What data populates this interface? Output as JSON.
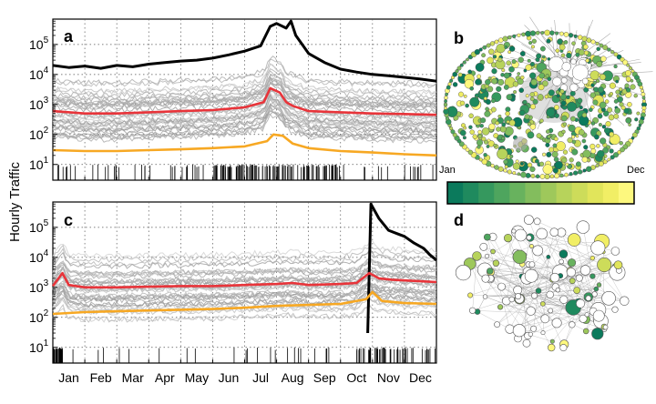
{
  "figure": {
    "ylabel": "Hourly Traffic",
    "months": [
      "Jan",
      "Feb",
      "Mar",
      "Apr",
      "May",
      "Jun",
      "Jul",
      "Aug",
      "Sep",
      "Oct",
      "Nov",
      "Dec"
    ],
    "colorbar": {
      "start_label": "Jan",
      "end_label": "Dec",
      "colors": [
        "#0b7a5c",
        "#1f8a5e",
        "#35985e",
        "#4ea55e",
        "#68b25e",
        "#83bd5d",
        "#9ec85b",
        "#b7d35b",
        "#cddc5a",
        "#e1e55b",
        "#f1ee65",
        "#fdf87e"
      ]
    }
  },
  "chart_data": [
    {
      "panel": "a",
      "type": "line",
      "yscale": "log",
      "ylim": [
        3,
        700000
      ],
      "yticks": [
        "10^1",
        "10^2",
        "10^3",
        "10^4",
        "10^5"
      ],
      "x_categories": [
        "Jan",
        "Feb",
        "Mar",
        "Apr",
        "May",
        "Jun",
        "Jul",
        "Aug",
        "Sep",
        "Oct",
        "Nov",
        "Dec"
      ],
      "x_domain_months": [
        0,
        12
      ],
      "series": [
        {
          "color": "#000000",
          "points": [
            [
              0,
              20000
            ],
            [
              0.5,
              17000
            ],
            [
              1,
              19000
            ],
            [
              1.5,
              16000
            ],
            [
              2,
              20000
            ],
            [
              2.5,
              18000
            ],
            [
              3,
              22000
            ],
            [
              3.5,
              25000
            ],
            [
              4,
              28000
            ],
            [
              4.5,
              30000
            ],
            [
              5,
              35000
            ],
            [
              5.5,
              45000
            ],
            [
              6,
              60000
            ],
            [
              6.5,
              90000
            ],
            [
              6.8,
              400000
            ],
            [
              7,
              500000
            ],
            [
              7.3,
              350000
            ],
            [
              7.45,
              600000
            ],
            [
              7.6,
              200000
            ],
            [
              8,
              50000
            ],
            [
              8.5,
              25000
            ],
            [
              9,
              15000
            ],
            [
              9.5,
              12000
            ],
            [
              10,
              10000
            ],
            [
              10.5,
              9000
            ],
            [
              11,
              8000
            ],
            [
              11.5,
              7000
            ],
            [
              12,
              6000
            ]
          ]
        },
        {
          "color": "#e8343a",
          "points": [
            [
              0,
              600
            ],
            [
              1,
              500
            ],
            [
              2,
              500
            ],
            [
              3,
              550
            ],
            [
              4,
              600
            ],
            [
              5,
              650
            ],
            [
              6,
              800
            ],
            [
              6.6,
              1200
            ],
            [
              6.8,
              3500
            ],
            [
              7.1,
              2500
            ],
            [
              7.3,
              1200
            ],
            [
              7.5,
              900
            ],
            [
              8,
              600
            ],
            [
              9,
              550
            ],
            [
              10,
              500
            ],
            [
              11,
              480
            ],
            [
              12,
              450
            ]
          ]
        },
        {
          "color": "#f7a823",
          "points": [
            [
              0,
              30
            ],
            [
              1,
              28
            ],
            [
              2,
              28
            ],
            [
              3,
              30
            ],
            [
              4,
              32
            ],
            [
              5,
              35
            ],
            [
              6,
              40
            ],
            [
              6.7,
              60
            ],
            [
              6.9,
              100
            ],
            [
              7.2,
              90
            ],
            [
              7.5,
              50
            ],
            [
              8,
              35
            ],
            [
              9,
              28
            ],
            [
              10,
              25
            ],
            [
              11,
              22
            ],
            [
              12,
              20
            ]
          ]
        }
      ]
    },
    {
      "panel": "c",
      "type": "line",
      "yscale": "log",
      "ylim": [
        3,
        700000
      ],
      "yticks": [
        "10^1",
        "10^2",
        "10^3",
        "10^4",
        "10^5"
      ],
      "x_categories": [
        "Jan",
        "Feb",
        "Mar",
        "Apr",
        "May",
        "Jun",
        "Jul",
        "Aug",
        "Sep",
        "Oct",
        "Nov",
        "Dec"
      ],
      "x_domain_months": [
        0,
        12
      ],
      "series": [
        {
          "color": "#000000",
          "points": [
            [
              9.85,
              30
            ],
            [
              9.95,
              600000
            ],
            [
              10.2,
              200000
            ],
            [
              10.5,
              80000
            ],
            [
              10.8,
              60000
            ],
            [
              11,
              50000
            ],
            [
              11.3,
              30000
            ],
            [
              11.6,
              20000
            ],
            [
              11.8,
              12000
            ],
            [
              12,
              8000
            ]
          ]
        },
        {
          "color": "#e8343a",
          "points": [
            [
              0,
              1100
            ],
            [
              0.3,
              3000
            ],
            [
              0.5,
              1200
            ],
            [
              1,
              1000
            ],
            [
              2,
              1000
            ],
            [
              3,
              1050
            ],
            [
              4,
              1100
            ],
            [
              5,
              1100
            ],
            [
              6,
              1200
            ],
            [
              7,
              1300
            ],
            [
              7.5,
              1400
            ],
            [
              8,
              1200
            ],
            [
              9,
              1300
            ],
            [
              9.5,
              1400
            ],
            [
              9.9,
              3000
            ],
            [
              10.2,
              2000
            ],
            [
              10.6,
              1800
            ],
            [
              11,
              1700
            ],
            [
              11.5,
              1600
            ],
            [
              12,
              1500
            ]
          ]
        },
        {
          "color": "#f7a823",
          "points": [
            [
              0,
              130
            ],
            [
              1,
              150
            ],
            [
              2,
              160
            ],
            [
              3,
              170
            ],
            [
              4,
              180
            ],
            [
              5,
              190
            ],
            [
              6,
              210
            ],
            [
              7,
              240
            ],
            [
              8,
              260
            ],
            [
              9,
              280
            ],
            [
              9.8,
              400
            ],
            [
              10,
              700
            ],
            [
              10.3,
              350
            ],
            [
              11,
              300
            ],
            [
              12,
              280
            ]
          ]
        }
      ]
    }
  ]
}
